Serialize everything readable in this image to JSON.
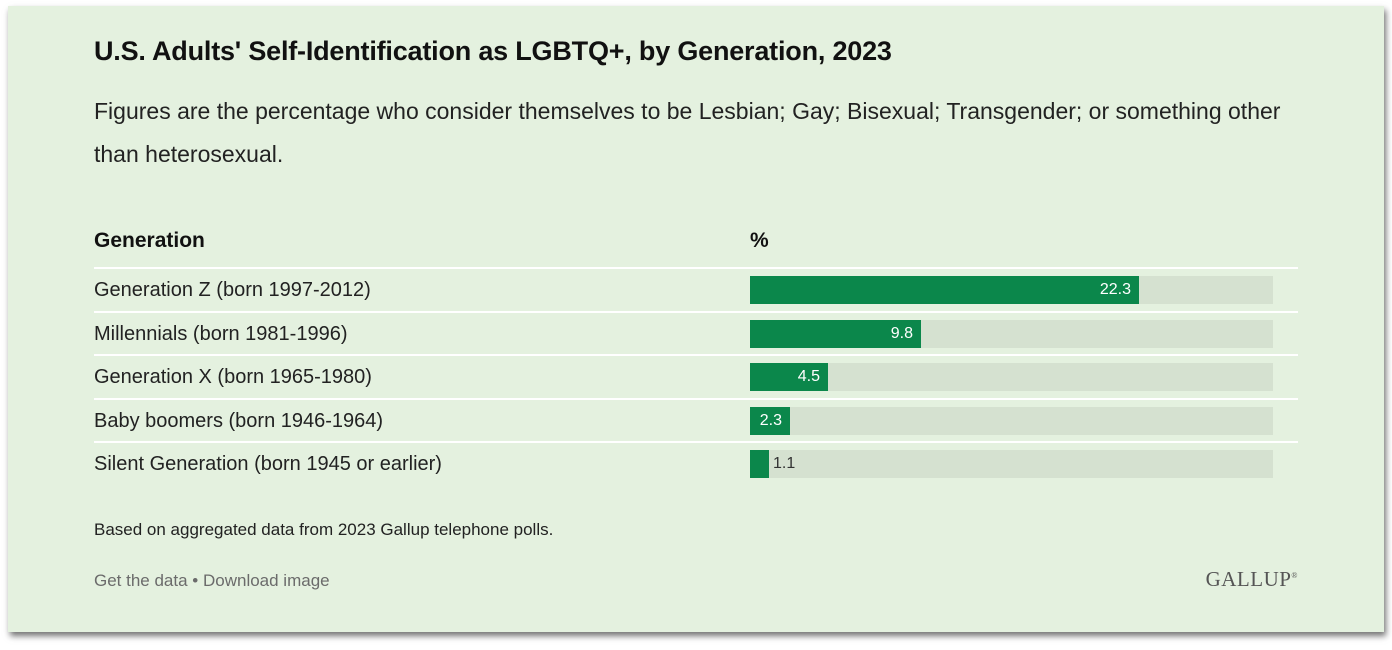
{
  "title": "U.S. Adults' Self-Identification as LGBTQ+, by Generation, 2023",
  "subtitle": "Figures are the percentage who consider themselves to be Lesbian; Gay; Bisexual; Transgender; or something other than heterosexual.",
  "columns": {
    "generation": "Generation",
    "percent": "%"
  },
  "footnote": "Based on aggregated data from 2023 Gallup telephone polls.",
  "links": {
    "get_data": "Get the data",
    "separator": " • ",
    "download": "Download image"
  },
  "brand": "GALLUP",
  "colors": {
    "background": "#e4f1df",
    "bar": "#0b874b",
    "track": "#d5e1d0"
  },
  "chart_data": {
    "type": "bar",
    "orientation": "horizontal",
    "title": "U.S. Adults' Self-Identification as LGBTQ+, by Generation, 2023",
    "categories": [
      "Generation Z (born 1997-2012)",
      "Millennials (born 1981-1996)",
      "Generation X (born 1965-1980)",
      "Baby boomers (born 1946-1964)",
      "Silent Generation (born 1945 or earlier)"
    ],
    "values": [
      22.3,
      9.8,
      4.5,
      2.3,
      1.1
    ],
    "xlim": [
      0,
      30
    ],
    "value_labels": [
      "22.3",
      "9.8",
      "4.5",
      "2.3",
      "1.1"
    ]
  }
}
